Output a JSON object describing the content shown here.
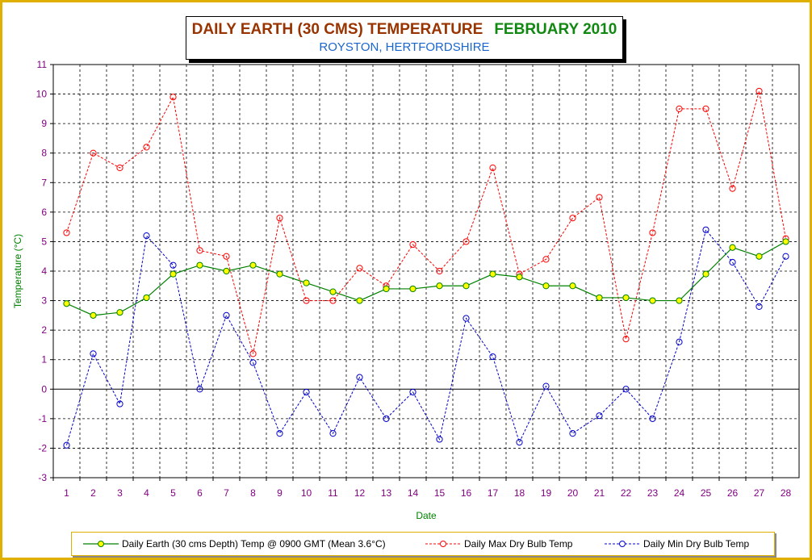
{
  "title": {
    "main": "DAILY EARTH (30 CMS) TEMPERATURE",
    "month": "FEBRUARY 2010",
    "subtitle": "ROYSTON, HERTFORDSHIRE"
  },
  "chart_data": {
    "type": "line",
    "xlabel": "Date",
    "ylabel": "Temperature (°C)",
    "categories": [
      "1",
      "2",
      "3",
      "4",
      "5",
      "6",
      "7",
      "8",
      "9",
      "10",
      "11",
      "12",
      "13",
      "14",
      "15",
      "16",
      "17",
      "18",
      "19",
      "20",
      "21",
      "22",
      "23",
      "24",
      "25",
      "26",
      "27",
      "28"
    ],
    "ylim": [
      -3,
      11
    ],
    "yticks": [
      "11",
      "10",
      "9",
      "8",
      "7",
      "6",
      "5",
      "4",
      "3",
      "2",
      "1",
      "0",
      "-1",
      "-2",
      "-3"
    ],
    "grid": true,
    "legend_position": "bottom",
    "series": [
      {
        "name": "Daily Earth (30 cms Depth) Temp @ 0900 GMT (Mean 3.6°C)",
        "color": "#008000",
        "marker_fill": "#ffff00",
        "line_style": "solid",
        "values": [
          2.9,
          2.5,
          2.6,
          3.1,
          3.9,
          4.2,
          4.0,
          4.2,
          3.9,
          3.6,
          3.3,
          3.0,
          3.4,
          3.4,
          3.5,
          3.5,
          3.9,
          3.8,
          3.5,
          3.5,
          3.1,
          3.1,
          3.0,
          3.0,
          3.9,
          4.8,
          4.5,
          5.0
        ]
      },
      {
        "name": "Daily Max Dry Bulb Temp",
        "color": "#ff0000",
        "marker_fill": "none",
        "line_style": "dashed",
        "values": [
          5.3,
          8.0,
          7.5,
          8.2,
          9.9,
          4.7,
          4.5,
          1.2,
          5.8,
          3.0,
          3.0,
          4.1,
          3.5,
          4.9,
          4.0,
          5.0,
          7.5,
          3.9,
          4.4,
          5.8,
          6.5,
          1.7,
          5.3,
          9.5,
          9.5,
          6.8,
          10.1,
          5.1
        ]
      },
      {
        "name": "Daily Min Dry Bulb Temp",
        "color": "#0000cc",
        "marker_fill": "none",
        "line_style": "dashed",
        "values": [
          -1.9,
          1.2,
          -0.5,
          5.2,
          4.2,
          0.0,
          2.5,
          0.9,
          -1.5,
          -0.1,
          -1.5,
          0.4,
          -1.0,
          -0.1,
          -1.7,
          2.4,
          1.1,
          -1.8,
          0.1,
          -1.5,
          -0.9,
          0.0,
          -1.0,
          1.6,
          5.4,
          4.3,
          2.8,
          4.5
        ]
      }
    ]
  }
}
